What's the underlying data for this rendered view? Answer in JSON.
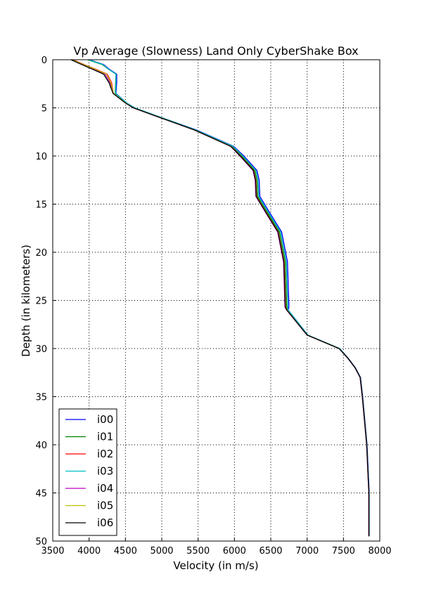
{
  "chart_data": {
    "type": "line",
    "title": "Vp Average (Slowness) Land Only CyberShake Box",
    "xlabel": "Velocity (in m/s)",
    "ylabel": "Depth (in kilometers)",
    "xlim": [
      3500,
      8000
    ],
    "ylim": [
      50,
      0
    ],
    "y_inverted": true,
    "grid": true,
    "legend_position": "lower-left",
    "xticks": [
      "3500",
      "4000",
      "4500",
      "5000",
      "5500",
      "6000",
      "6500",
      "7000",
      "7500",
      "8000"
    ],
    "yticks": [
      "0",
      "5",
      "10",
      "15",
      "20",
      "25",
      "30",
      "35",
      "40",
      "45",
      "50"
    ],
    "depth": [
      0,
      0.5,
      1,
      1.5,
      2.4,
      3.5,
      4.5,
      5,
      5.8,
      7.3,
      9,
      10,
      11.5,
      12.5,
      14.2,
      15.7,
      17.9,
      21,
      25.7,
      26,
      28.6,
      30,
      31,
      32,
      33,
      35,
      40,
      45,
      49.5
    ],
    "series": [
      {
        "name": "i00",
        "color": "#0000ff",
        "values": [
          4000,
          4200,
          4280,
          4380,
          4380,
          4370,
          4520,
          4630,
          4920,
          5480,
          5990,
          6130,
          6310,
          6340,
          6350,
          6470,
          6650,
          6730,
          6750,
          6740,
          7010,
          7450,
          7565,
          7665,
          7735,
          7765,
          7825,
          7855,
          7855
        ]
      },
      {
        "name": "i01",
        "color": "#008000",
        "values": [
          3980,
          4180,
          4270,
          4370,
          4365,
          4360,
          4515,
          4625,
          4915,
          5465,
          5970,
          6100,
          6280,
          6310,
          6320,
          6440,
          6620,
          6700,
          6720,
          6735,
          7005,
          7445,
          7560,
          7660,
          7730,
          7760,
          7820,
          7850,
          7850
        ]
      },
      {
        "name": "i02",
        "color": "#ff0000",
        "values": [
          3780,
          3930,
          4100,
          4250,
          4310,
          4335,
          4505,
          4615,
          4905,
          5455,
          5955,
          6085,
          6265,
          6295,
          6305,
          6425,
          6605,
          6685,
          6705,
          6725,
          7000,
          7440,
          7560,
          7660,
          7730,
          7760,
          7820,
          7850,
          7850
        ]
      },
      {
        "name": "i03",
        "color": "#00bfbf",
        "values": [
          3990,
          4190,
          4270,
          4370,
          4370,
          4365,
          4518,
          4628,
          4918,
          5470,
          5980,
          6115,
          6295,
          6325,
          6335,
          6455,
          6635,
          6715,
          6735,
          6738,
          7008,
          7448,
          7562,
          7662,
          7732,
          7762,
          7822,
          7852,
          7852
        ]
      },
      {
        "name": "i04",
        "color": "#bf00bf",
        "values": [
          3760,
          3910,
          4070,
          4220,
          4290,
          4335,
          4500,
          4608,
          4898,
          5448,
          5948,
          6075,
          6255,
          6285,
          6295,
          6415,
          6595,
          6675,
          6695,
          6718,
          6998,
          7438,
          7558,
          7658,
          7728,
          7758,
          7818,
          7848,
          7848
        ]
      },
      {
        "name": "i05",
        "color": "#bfbf00",
        "values": [
          3770,
          3920,
          4090,
          4240,
          4300,
          4335,
          4505,
          4612,
          4902,
          5452,
          5952,
          6082,
          6262,
          6292,
          6302,
          6422,
          6602,
          6682,
          6702,
          6722,
          7000,
          7440,
          7560,
          7660,
          7730,
          7760,
          7820,
          7850,
          7850
        ]
      },
      {
        "name": "i06",
        "color": "#000000",
        "values": [
          3750,
          3900,
          4050,
          4200,
          4275,
          4330,
          4500,
          4610,
          4900,
          5450,
          5950,
          6080,
          6260,
          6290,
          6300,
          6420,
          6600,
          6680,
          6700,
          6720,
          7000,
          7440,
          7560,
          7660,
          7730,
          7760,
          7820,
          7850,
          7850
        ]
      }
    ]
  }
}
